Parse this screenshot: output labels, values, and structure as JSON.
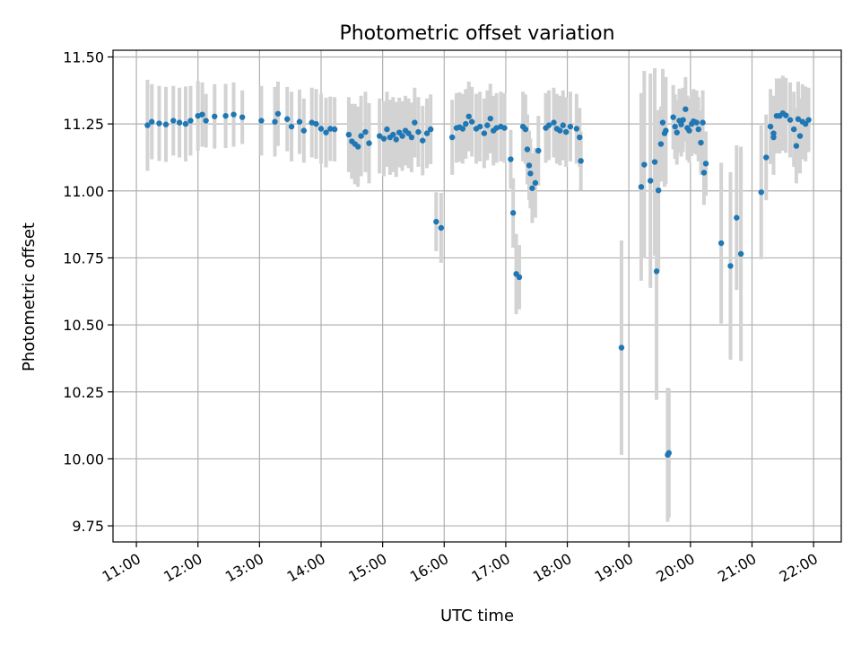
{
  "chart_data": {
    "type": "scatter",
    "title": "Photometric offset variation",
    "xlabel": "UTC time",
    "ylabel": "Photometric offset",
    "x_unit": "UTC time (hours)",
    "xlim": [
      10.62,
      22.45
    ],
    "ylim": [
      9.69,
      11.525
    ],
    "x_ticks": [
      {
        "value": 11,
        "label": "11:00"
      },
      {
        "value": 12,
        "label": "12:00"
      },
      {
        "value": 13,
        "label": "13:00"
      },
      {
        "value": 14,
        "label": "14:00"
      },
      {
        "value": 15,
        "label": "15:00"
      },
      {
        "value": 16,
        "label": "16:00"
      },
      {
        "value": 17,
        "label": "17:00"
      },
      {
        "value": 18,
        "label": "18:00"
      },
      {
        "value": 19,
        "label": "19:00"
      },
      {
        "value": 20,
        "label": "20:00"
      },
      {
        "value": 21,
        "label": "21:00"
      },
      {
        "value": 22,
        "label": "22:00"
      }
    ],
    "y_ticks": [
      {
        "value": 9.75,
        "label": "9.75"
      },
      {
        "value": 10.0,
        "label": "10.00"
      },
      {
        "value": 10.25,
        "label": "10.25"
      },
      {
        "value": 10.5,
        "label": "10.50"
      },
      {
        "value": 10.75,
        "label": "10.75"
      },
      {
        "value": 11.0,
        "label": "11.00"
      },
      {
        "value": 11.25,
        "label": "11.25"
      },
      {
        "value": 11.5,
        "label": "11.50"
      }
    ],
    "grid": true,
    "colors": {
      "point": "#1f77b4",
      "errorbar": "#d3d3d3",
      "grid": "#b0b0b0"
    },
    "points": [
      {
        "x": 11.18,
        "y": 11.245,
        "err": 0.17
      },
      {
        "x": 11.25,
        "y": 11.258,
        "err": 0.14
      },
      {
        "x": 11.37,
        "y": 11.252,
        "err": 0.14
      },
      {
        "x": 11.48,
        "y": 11.248,
        "err": 0.14
      },
      {
        "x": 11.6,
        "y": 11.262,
        "err": 0.13
      },
      {
        "x": 11.7,
        "y": 11.255,
        "err": 0.13
      },
      {
        "x": 11.8,
        "y": 11.25,
        "err": 0.14
      },
      {
        "x": 11.88,
        "y": 11.262,
        "err": 0.13
      },
      {
        "x": 12.0,
        "y": 11.28,
        "err": 0.13
      },
      {
        "x": 12.07,
        "y": 11.285,
        "err": 0.12
      },
      {
        "x": 12.13,
        "y": 11.262,
        "err": 0.1
      },
      {
        "x": 12.27,
        "y": 11.278,
        "err": 0.12
      },
      {
        "x": 12.45,
        "y": 11.28,
        "err": 0.12
      },
      {
        "x": 12.58,
        "y": 11.285,
        "err": 0.12
      },
      {
        "x": 12.72,
        "y": 11.275,
        "err": 0.1
      },
      {
        "x": 13.03,
        "y": 11.262,
        "err": 0.13
      },
      {
        "x": 13.25,
        "y": 11.258,
        "err": 0.13
      },
      {
        "x": 13.3,
        "y": 11.288,
        "err": 0.12
      },
      {
        "x": 13.45,
        "y": 11.268,
        "err": 0.12
      },
      {
        "x": 13.52,
        "y": 11.24,
        "err": 0.13
      },
      {
        "x": 13.65,
        "y": 11.258,
        "err": 0.12
      },
      {
        "x": 13.72,
        "y": 11.225,
        "err": 0.12
      },
      {
        "x": 13.85,
        "y": 11.255,
        "err": 0.13
      },
      {
        "x": 13.92,
        "y": 11.25,
        "err": 0.13
      },
      {
        "x": 14.0,
        "y": 11.232,
        "err": 0.13
      },
      {
        "x": 14.08,
        "y": 11.218,
        "err": 0.13
      },
      {
        "x": 14.15,
        "y": 11.232,
        "err": 0.12
      },
      {
        "x": 14.22,
        "y": 11.23,
        "err": 0.12
      },
      {
        "x": 14.45,
        "y": 11.21,
        "err": 0.14
      },
      {
        "x": 14.5,
        "y": 11.185,
        "err": 0.14
      },
      {
        "x": 14.55,
        "y": 11.175,
        "err": 0.15
      },
      {
        "x": 14.6,
        "y": 11.165,
        "err": 0.15
      },
      {
        "x": 14.65,
        "y": 11.205,
        "err": 0.15
      },
      {
        "x": 14.72,
        "y": 11.22,
        "err": 0.15
      },
      {
        "x": 14.78,
        "y": 11.178,
        "err": 0.15
      },
      {
        "x": 14.95,
        "y": 11.205,
        "err": 0.14
      },
      {
        "x": 15.02,
        "y": 11.195,
        "err": 0.14
      },
      {
        "x": 15.07,
        "y": 11.23,
        "err": 0.14
      },
      {
        "x": 15.12,
        "y": 11.2,
        "err": 0.14
      },
      {
        "x": 15.17,
        "y": 11.21,
        "err": 0.14
      },
      {
        "x": 15.22,
        "y": 11.192,
        "err": 0.14
      },
      {
        "x": 15.27,
        "y": 11.218,
        "err": 0.13
      },
      {
        "x": 15.32,
        "y": 11.205,
        "err": 0.13
      },
      {
        "x": 15.37,
        "y": 11.225,
        "err": 0.13
      },
      {
        "x": 15.42,
        "y": 11.215,
        "err": 0.13
      },
      {
        "x": 15.47,
        "y": 11.2,
        "err": 0.13
      },
      {
        "x": 15.52,
        "y": 11.255,
        "err": 0.13
      },
      {
        "x": 15.58,
        "y": 11.22,
        "err": 0.13
      },
      {
        "x": 15.65,
        "y": 11.188,
        "err": 0.13
      },
      {
        "x": 15.72,
        "y": 11.215,
        "err": 0.13
      },
      {
        "x": 15.78,
        "y": 11.23,
        "err": 0.13
      },
      {
        "x": 15.87,
        "y": 10.885,
        "err": 0.11
      },
      {
        "x": 15.95,
        "y": 10.862,
        "err": 0.13
      },
      {
        "x": 16.13,
        "y": 11.2,
        "err": 0.14
      },
      {
        "x": 16.2,
        "y": 11.235,
        "err": 0.13
      },
      {
        "x": 16.25,
        "y": 11.238,
        "err": 0.13
      },
      {
        "x": 16.3,
        "y": 11.232,
        "err": 0.13
      },
      {
        "x": 16.35,
        "y": 11.25,
        "err": 0.13
      },
      {
        "x": 16.4,
        "y": 11.278,
        "err": 0.13
      },
      {
        "x": 16.45,
        "y": 11.258,
        "err": 0.13
      },
      {
        "x": 16.52,
        "y": 11.232,
        "err": 0.13
      },
      {
        "x": 16.58,
        "y": 11.24,
        "err": 0.13
      },
      {
        "x": 16.65,
        "y": 11.215,
        "err": 0.13
      },
      {
        "x": 16.7,
        "y": 11.245,
        "err": 0.13
      },
      {
        "x": 16.75,
        "y": 11.27,
        "err": 0.13
      },
      {
        "x": 16.8,
        "y": 11.225,
        "err": 0.13
      },
      {
        "x": 16.85,
        "y": 11.235,
        "err": 0.13
      },
      {
        "x": 16.92,
        "y": 11.24,
        "err": 0.13
      },
      {
        "x": 16.98,
        "y": 11.235,
        "err": 0.13
      },
      {
        "x": 17.08,
        "y": 11.118,
        "err": 0.11
      },
      {
        "x": 17.12,
        "y": 10.918,
        "err": 0.13
      },
      {
        "x": 17.17,
        "y": 10.69,
        "err": 0.15
      },
      {
        "x": 17.22,
        "y": 10.678,
        "err": 0.12
      },
      {
        "x": 17.28,
        "y": 11.24,
        "err": 0.13
      },
      {
        "x": 17.32,
        "y": 11.23,
        "err": 0.13
      },
      {
        "x": 17.35,
        "y": 11.155,
        "err": 0.13
      },
      {
        "x": 17.38,
        "y": 11.095,
        "err": 0.13
      },
      {
        "x": 17.4,
        "y": 11.065,
        "err": 0.13
      },
      {
        "x": 17.43,
        "y": 11.01,
        "err": 0.13
      },
      {
        "x": 17.48,
        "y": 11.03,
        "err": 0.13
      },
      {
        "x": 17.53,
        "y": 11.15,
        "err": 0.13
      },
      {
        "x": 17.65,
        "y": 11.235,
        "err": 0.13
      },
      {
        "x": 17.7,
        "y": 11.245,
        "err": 0.13
      },
      {
        "x": 17.78,
        "y": 11.255,
        "err": 0.13
      },
      {
        "x": 17.83,
        "y": 11.232,
        "err": 0.13
      },
      {
        "x": 17.88,
        "y": 11.225,
        "err": 0.13
      },
      {
        "x": 17.93,
        "y": 11.245,
        "err": 0.13
      },
      {
        "x": 17.98,
        "y": 11.22,
        "err": 0.13
      },
      {
        "x": 18.05,
        "y": 11.24,
        "err": 0.13
      },
      {
        "x": 18.15,
        "y": 11.232,
        "err": 0.13
      },
      {
        "x": 18.2,
        "y": 11.2,
        "err": 0.11
      },
      {
        "x": 18.22,
        "y": 11.112,
        "err": 0.11
      },
      {
        "x": 18.88,
        "y": 10.415,
        "err": 0.4
      },
      {
        "x": 19.2,
        "y": 11.015,
        "err": 0.35
      },
      {
        "x": 19.25,
        "y": 11.098,
        "err": 0.35
      },
      {
        "x": 19.35,
        "y": 11.038,
        "err": 0.4
      },
      {
        "x": 19.42,
        "y": 11.108,
        "err": 0.35
      },
      {
        "x": 19.48,
        "y": 11.002,
        "err": 0.3
      },
      {
        "x": 19.45,
        "y": 10.7,
        "err": 0.48
      },
      {
        "x": 19.52,
        "y": 11.175,
        "err": 0.14
      },
      {
        "x": 19.55,
        "y": 11.255,
        "err": 0.2
      },
      {
        "x": 19.58,
        "y": 11.215,
        "err": 0.2
      },
      {
        "x": 19.6,
        "y": 11.225,
        "err": 0.2
      },
      {
        "x": 19.63,
        "y": 10.015,
        "err": 0.25
      },
      {
        "x": 19.65,
        "y": 10.022,
        "err": 0.24
      },
      {
        "x": 19.72,
        "y": 11.275,
        "err": 0.12
      },
      {
        "x": 19.75,
        "y": 11.24,
        "err": 0.12
      },
      {
        "x": 19.78,
        "y": 11.218,
        "err": 0.12
      },
      {
        "x": 19.82,
        "y": 11.262,
        "err": 0.12
      },
      {
        "x": 19.85,
        "y": 11.248,
        "err": 0.12
      },
      {
        "x": 19.88,
        "y": 11.265,
        "err": 0.12
      },
      {
        "x": 19.92,
        "y": 11.305,
        "err": 0.12
      },
      {
        "x": 19.95,
        "y": 11.235,
        "err": 0.12
      },
      {
        "x": 19.98,
        "y": 11.225,
        "err": 0.12
      },
      {
        "x": 20.02,
        "y": 11.25,
        "err": 0.12
      },
      {
        "x": 20.05,
        "y": 11.26,
        "err": 0.12
      },
      {
        "x": 20.1,
        "y": 11.255,
        "err": 0.12
      },
      {
        "x": 20.13,
        "y": 11.23,
        "err": 0.12
      },
      {
        "x": 20.17,
        "y": 11.18,
        "err": 0.12
      },
      {
        "x": 20.2,
        "y": 11.255,
        "err": 0.12
      },
      {
        "x": 20.22,
        "y": 11.068,
        "err": 0.12
      },
      {
        "x": 20.25,
        "y": 11.102,
        "err": 0.12
      },
      {
        "x": 20.5,
        "y": 10.805,
        "err": 0.3
      },
      {
        "x": 20.65,
        "y": 10.72,
        "err": 0.35
      },
      {
        "x": 20.75,
        "y": 10.9,
        "err": 0.27
      },
      {
        "x": 20.82,
        "y": 10.765,
        "err": 0.4
      },
      {
        "x": 21.15,
        "y": 10.995,
        "err": 0.25
      },
      {
        "x": 21.23,
        "y": 11.125,
        "err": 0.16
      },
      {
        "x": 21.3,
        "y": 11.24,
        "err": 0.14
      },
      {
        "x": 21.35,
        "y": 11.2,
        "err": 0.14
      },
      {
        "x": 21.35,
        "y": 11.215,
        "err": 0.14
      },
      {
        "x": 21.4,
        "y": 11.28,
        "err": 0.14
      },
      {
        "x": 21.45,
        "y": 11.28,
        "err": 0.14
      },
      {
        "x": 21.5,
        "y": 11.29,
        "err": 0.14
      },
      {
        "x": 21.55,
        "y": 11.282,
        "err": 0.14
      },
      {
        "x": 21.62,
        "y": 11.265,
        "err": 0.14
      },
      {
        "x": 21.68,
        "y": 11.23,
        "err": 0.14
      },
      {
        "x": 21.72,
        "y": 11.168,
        "err": 0.14
      },
      {
        "x": 21.75,
        "y": 11.268,
        "err": 0.14
      },
      {
        "x": 21.78,
        "y": 11.205,
        "err": 0.14
      },
      {
        "x": 21.82,
        "y": 11.258,
        "err": 0.14
      },
      {
        "x": 21.87,
        "y": 11.25,
        "err": 0.14
      },
      {
        "x": 21.92,
        "y": 11.265,
        "err": 0.12
      }
    ]
  }
}
